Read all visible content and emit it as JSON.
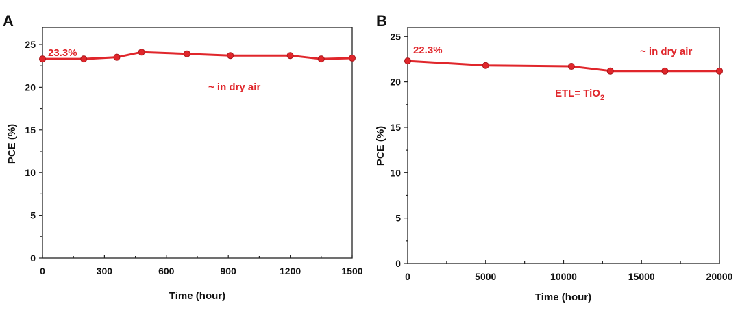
{
  "chart_data": [
    {
      "panel": "A",
      "type": "line",
      "xlabel": "Time (hour)",
      "ylabel": "PCE (%)",
      "xlim": [
        0,
        1500
      ],
      "ylim": [
        0,
        27
      ],
      "xticks": [
        0,
        300,
        600,
        900,
        1200,
        1500
      ],
      "xtick_labels": [
        "0",
        "300",
        "600",
        "900",
        "1200",
        "1500"
      ],
      "yticks": [
        0,
        5,
        10,
        15,
        20,
        25
      ],
      "ytick_labels": [
        "0",
        "5",
        "10",
        "15",
        "20",
        "25"
      ],
      "grid": false,
      "series": [
        {
          "x": [
            0,
            200,
            360,
            480,
            700,
            910,
            1200,
            1350,
            1500
          ],
          "y": [
            23.3,
            23.3,
            23.5,
            24.1,
            23.9,
            23.7,
            23.7,
            23.3,
            23.4
          ],
          "color": "#e0262b"
        }
      ],
      "annotations": [
        {
          "text": "23.3%",
          "color": "#e0262b"
        },
        {
          "text": "~ in dry air",
          "color": "#e0262b"
        }
      ]
    },
    {
      "panel": "B",
      "type": "line",
      "xlabel": "Time (hour)",
      "ylabel": "PCE (%)",
      "xlim": [
        0,
        20000
      ],
      "ylim": [
        0,
        26
      ],
      "xticks": [
        0,
        5000,
        10000,
        15000,
        20000
      ],
      "xtick_labels": [
        "0",
        "5000",
        "10000",
        "15000",
        "20000"
      ],
      "yticks": [
        0,
        5,
        10,
        15,
        20,
        25
      ],
      "ytick_labels": [
        "0",
        "5",
        "10",
        "15",
        "20",
        "25"
      ],
      "grid": false,
      "series": [
        {
          "x": [
            0,
            5000,
            10500,
            13000,
            16500,
            20000
          ],
          "y": [
            22.3,
            21.8,
            21.7,
            21.2,
            21.2,
            21.2
          ],
          "color": "#e0262b"
        }
      ],
      "annotations": [
        {
          "text": "22.3%",
          "color": "#e0262b"
        },
        {
          "text": "~ in dry air",
          "color": "#e0262b"
        },
        {
          "text": "ETL= TiO",
          "subscript": "2",
          "color": "#e0262b"
        }
      ]
    }
  ]
}
